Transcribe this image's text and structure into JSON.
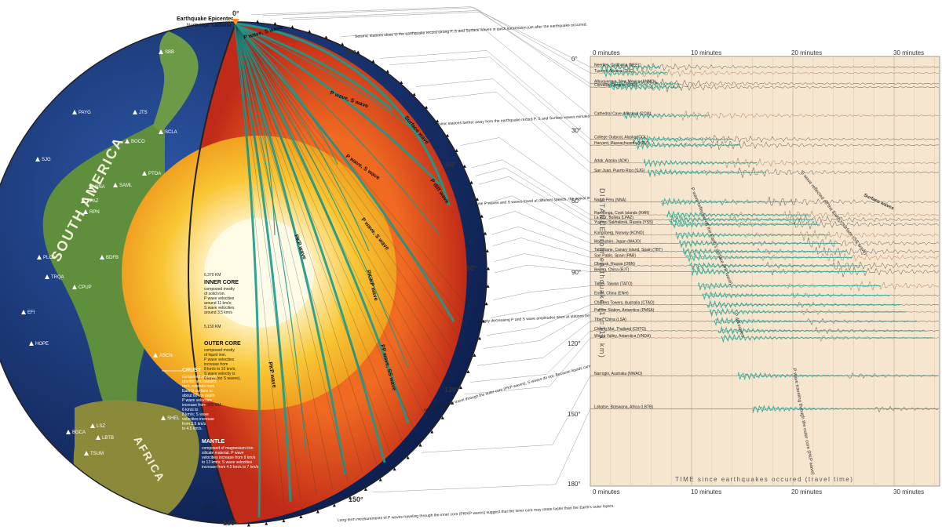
{
  "epicenter": {
    "degree": "0°",
    "title": "Earthquake Epicenter",
    "location": "Northridge, California"
  },
  "continents": {
    "south_america": "SOUTH AMERICA",
    "africa": "AFRICA"
  },
  "stations": [
    "SBB",
    "PAYG",
    "JTS",
    "SCLA",
    "BOCO",
    "PTOA",
    "SAML",
    "NNA",
    "LPAZ",
    "SJG",
    "RPN",
    "BDFB",
    "PLCA",
    "CPUP",
    "TRQA",
    "EFI",
    "HOPE",
    "ASCN",
    "SHEL",
    "TSUM",
    "LSZ",
    "BGCA",
    "LBTB"
  ],
  "degree_marks": [
    "30°",
    "60°",
    "90°",
    "120°",
    "150°",
    "180°"
  ],
  "wave_labels": [
    "P wave, S wave",
    "P wave, S wave",
    "P wave, S wave",
    "P wave, S wave",
    "Surface wave",
    "PKP wave",
    "PKiKP wave",
    "PKP wave",
    "P diff wave",
    "PP wave, SS wave"
  ],
  "layers": {
    "inner_core": {
      "title": "INNER CORE",
      "lines": [
        "composed mostly",
        "of solid iron.",
        "P wave velocities",
        "around 11 km/s;",
        "S wave velocities",
        "around 3.5 km/s"
      ]
    },
    "outer_core": {
      "title": "OUTER CORE",
      "lines": [
        "composed mostly",
        "of liquid iron.",
        "P wave velocities",
        "increase from",
        "8 km/s to 10 km/s;",
        "S wave velocity is",
        "0 km/s (no S waves)."
      ]
    },
    "crust": {
      "title": "CRUST",
      "lines": [
        "composed of mostly",
        "granitic and basaltic",
        "rock, extends from",
        "Earth's surface to",
        "about 60 km depth.",
        "P wave velocities",
        "increase from",
        "6 km/s to",
        "8 km/s; S wave",
        "velocities increase",
        "from 3.5 km/s",
        "to 4.5 km/s."
      ]
    },
    "mantle": {
      "title": "MANTLE",
      "lines": [
        "composed of magnesium iron",
        "silicate material. P wave",
        "velocities increase from 8 km/s",
        "to 13 km/s; S wave velocities",
        "increase from 4.5 km/s to 7 km/s"
      ]
    },
    "depths": [
      "6,370 KM",
      "5,150 KM",
      "2,900 KM",
      "50 KM"
    ]
  },
  "annotations": [
    "Seismic stations close to the earthquake record strong P, S and Surface waves in quick succession just after the earthquake occurred.",
    "Seismic stations farther away from the earthquake record P, S and Surface waves minutes after the earthquake occurred.",
    "Because P waves and S waves travel at different speeds, the arrival times between the P, S and Surface waves become greater with increasing distance.",
    "The sharply decreasing P and S wave amplitudes seen at stations beyond about 100° (11,100 km) from the earthquake indicate the existence of the Earth's outer core.",
    "Although P waves travel through the outer core (PKP waves), S waves do not. Because liquids cannot support shear motion, the absence of S waves traveling through the outer core indicates that the outer core is fluid.",
    "Long-term measurements of P waves traveling through the inner core (PKIKP waves) suggest that the inner core may rotate faster than the Earth's outer layers."
  ],
  "seismogram": {
    "time_labels": [
      "0 minutes",
      "10 minutes",
      "20 minutes",
      "30 minutes"
    ],
    "distance_labels": [
      "0°",
      "30°",
      "60°",
      "90°",
      "120°",
      "150°",
      "180°"
    ],
    "y_axis_title": "DISTANCE from earthquake (1°=111 km)",
    "x_axis_title": "TIME since earthquakes occured (travel time)",
    "stations": [
      {
        "name": "Needles, California (NEE)",
        "deg": 3.5
      },
      {
        "name": "Tucson, Arizona (TUC)",
        "deg": 6
      },
      {
        "name": "Albuquerque, New Mexico (ANMO)",
        "deg": 10.5
      },
      {
        "name": "Corvallis, Oregon (COR)",
        "deg": 12
      },
      {
        "name": "Cathedral Cave, Missouri (CCM)",
        "deg": 24
      },
      {
        "name": "College Outpost, Alaska (COL)",
        "deg": 34
      },
      {
        "name": "Harvard, Massachusetts (HRV)",
        "deg": 36.5
      },
      {
        "name": "Adak, Alaska (ADK)",
        "deg": 44
      },
      {
        "name": "San Juan, Puerto Rico (SJG)",
        "deg": 48
      },
      {
        "name": "Nana, Peru (NNA)",
        "deg": 60.5
      },
      {
        "name": "Rarotonga, Cook Islands (RAR)",
        "deg": 66
      },
      {
        "name": "La Paz, Bolivia (LPAZ)",
        "deg": 68
      },
      {
        "name": "Yuzhno Sakhalinsk, Russia (YSS)",
        "deg": 70
      },
      {
        "name": "Kongsberg, Norway (KONO)",
        "deg": 74.5
      },
      {
        "name": "Matsushiro, Japan (MAJO)",
        "deg": 78
      },
      {
        "name": "Tabarbane, Canary Island, Spain (TBT)",
        "deg": 81.5
      },
      {
        "name": "San Pablo, Spain (PAB)",
        "deg": 84
      },
      {
        "name": "Obninsk, Russia (OBN)",
        "deg": 87.5
      },
      {
        "name": "Beijing, China (BJT)",
        "deg": 90
      },
      {
        "name": "Taipei, Taiwan (TATO)",
        "deg": 96
      },
      {
        "name": "Enshi, China (ENH)",
        "deg": 100
      },
      {
        "name": "Charters Towers, Australia (CTAO)",
        "deg": 104
      },
      {
        "name": "Palmer Station, Antarctica (PMSA)",
        "deg": 107
      },
      {
        "name": "Tibet, China (LSA)",
        "deg": 111
      },
      {
        "name": "Chiang Mai, Thailand (CHTO)",
        "deg": 115
      },
      {
        "name": "Wright Valley, Antarctica (VNDA)",
        "deg": 118
      },
      {
        "name": "Narrogin, Australia (NWAO)",
        "deg": 134
      },
      {
        "name": "Lobatse, Botswana, Africa (LBTB)",
        "deg": 148
      }
    ],
    "phase_labels": [
      "Surface waves",
      "P wave reflected off the Earth's surface (PP wave)",
      "S wave reflected off the Earth's surface (SS wave)",
      "P wave traveling through the outer core (PKP wave)",
      "P diff waves"
    ]
  },
  "colors": {
    "ocean": "#1a3b7a",
    "land": "#5a8a38",
    "mantle": "#e04a1e",
    "outer_core": "#f5b21c",
    "inner_core": "#fff7da",
    "ray": "#1a9a8c",
    "paper": "#f6e6cf",
    "trace_green": "#1aa99a",
    "trace_brown": "#8a4a2a"
  }
}
